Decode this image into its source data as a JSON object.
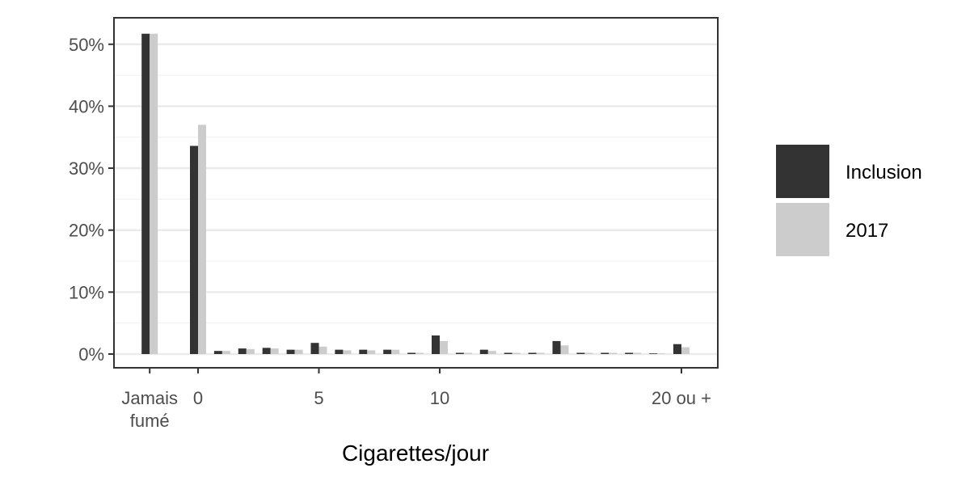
{
  "chart_data": {
    "type": "bar",
    "xlabel": "Cigarettes/jour",
    "ylabel": "",
    "ylim": [
      -2,
      53
    ],
    "x_tick_values": [
      -2,
      0,
      5,
      10,
      20
    ],
    "x_tick_labels": [
      [
        "Jamais",
        "fumé"
      ],
      [
        "0"
      ],
      [
        "5"
      ],
      [
        "10"
      ],
      [
        "20 ou +"
      ]
    ],
    "y_ticks": [
      0,
      10,
      20,
      30,
      40,
      50
    ],
    "y_tick_labels": [
      "0%",
      "10%",
      "20%",
      "30%",
      "40%",
      "50%"
    ],
    "grid": true,
    "legend_position": "right",
    "x": [
      -2,
      0,
      1,
      2,
      3,
      4,
      5,
      6,
      7,
      8,
      9,
      10,
      11,
      12,
      13,
      14,
      15,
      16,
      17,
      18,
      19,
      20
    ],
    "series": [
      {
        "name": "Inclusion",
        "color": "#333333",
        "values": [
          51.7,
          33.6,
          0.5,
          0.9,
          1.0,
          0.7,
          1.8,
          0.7,
          0.7,
          0.7,
          0.2,
          3.0,
          0.2,
          0.7,
          0.2,
          0.2,
          2.1,
          0.2,
          0.2,
          0.2,
          0.1,
          1.6
        ]
      },
      {
        "name": "2017",
        "color": "#cccccc",
        "values": [
          51.7,
          37.0,
          0.5,
          0.8,
          0.9,
          0.7,
          1.2,
          0.6,
          0.6,
          0.7,
          0.2,
          2.1,
          0.2,
          0.5,
          0.2,
          0.2,
          1.4,
          0.2,
          0.2,
          0.2,
          0.1,
          1.1
        ]
      }
    ]
  }
}
